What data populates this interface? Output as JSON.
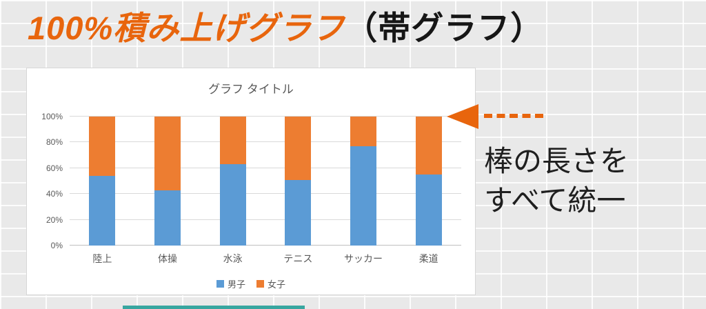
{
  "slide": {
    "title_highlight": "100%積み上げグラフ",
    "title_rest": "（帯グラフ）",
    "annotation": {
      "line1": "棒の長さを",
      "line2": "すべて統一"
    }
  },
  "chart_data": {
    "type": "bar",
    "variant": "100%-stacked-column",
    "title": "グラフ タイトル",
    "categories": [
      "陸上",
      "体操",
      "水泳",
      "テニス",
      "サッカー",
      "柔道"
    ],
    "series": [
      {
        "name": "男子",
        "color": "#5B9BD5",
        "values": [
          54,
          43,
          63,
          51,
          77,
          55
        ]
      },
      {
        "name": "女子",
        "color": "#ED7D31",
        "values": [
          46,
          57,
          37,
          49,
          23,
          45
        ]
      }
    ],
    "y_ticks": [
      "0%",
      "20%",
      "40%",
      "60%",
      "80%",
      "100%"
    ],
    "ylim": [
      0,
      100
    ],
    "grid": true,
    "legend_position": "bottom"
  },
  "colors": {
    "title_orange": "#E8650D",
    "arrow_orange": "#E8650D",
    "series_male_blue": "#5B9BD5",
    "series_female_orange": "#ED7D31",
    "bottom_strip_teal": "#38A6A0"
  }
}
